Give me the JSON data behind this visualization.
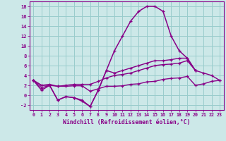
{
  "xlabel": "Windchill (Refroidissement éolien,°C)",
  "x": [
    0,
    1,
    2,
    3,
    4,
    5,
    6,
    7,
    8,
    9,
    10,
    11,
    12,
    13,
    14,
    15,
    16,
    17,
    18,
    19,
    20,
    21,
    22,
    23
  ],
  "line1": [
    3,
    1,
    2,
    -1,
    -0.3,
    -0.5,
    -1.2,
    -2.3,
    1,
    5,
    9,
    12,
    15,
    17,
    18,
    18,
    17,
    12,
    9,
    7.5,
    5,
    null,
    null,
    null
  ],
  "line2": [
    3,
    1.5,
    2,
    -1,
    -0.3,
    -0.5,
    -1.0,
    -2.3,
    1,
    5,
    4.5,
    5,
    5.5,
    6,
    6.5,
    7,
    7,
    7.2,
    7.5,
    7.5,
    5,
    null,
    null,
    null
  ],
  "line3": [
    3,
    2,
    2.2,
    1.8,
    2.0,
    2.2,
    2.2,
    2.2,
    2.8,
    3.5,
    4.0,
    4.2,
    4.5,
    5.0,
    5.5,
    6.0,
    6.2,
    6.3,
    6.5,
    7.0,
    5.0,
    4.5,
    4.0,
    3.0
  ],
  "line4": [
    3,
    2,
    2,
    1.8,
    1.8,
    1.9,
    1.9,
    0.8,
    1.3,
    1.8,
    1.8,
    1.9,
    2.2,
    2.3,
    2.7,
    2.8,
    3.2,
    3.4,
    3.5,
    3.8,
    2.0,
    2.3,
    2.8,
    3.0
  ],
  "ylim": [
    -3,
    19
  ],
  "yticks": [
    -2,
    0,
    2,
    4,
    6,
    8,
    10,
    12,
    14,
    16,
    18
  ],
  "xlim": [
    -0.5,
    23.5
  ],
  "line_color": "#880088",
  "bg_color": "#cce8e8",
  "grid_color": "#99cccc"
}
